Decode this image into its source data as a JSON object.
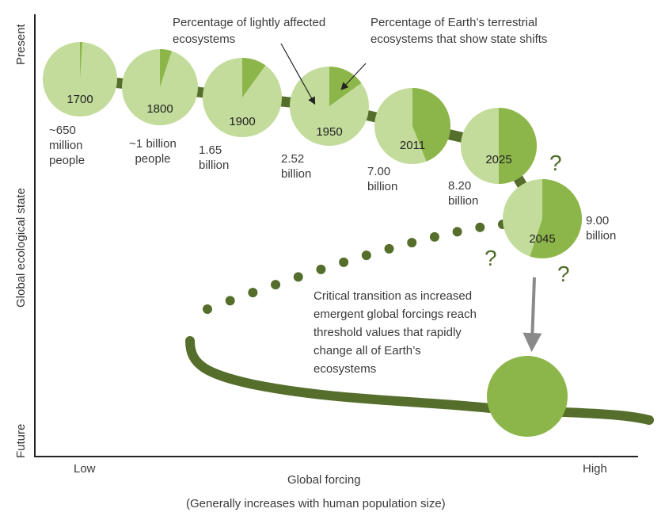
{
  "axes": {
    "y_label": "Global ecological state",
    "y_top": "Present",
    "y_bottom": "Future",
    "x_label": "Global forcing",
    "x_low": "Low",
    "x_high": "High",
    "x_note": "(Generally increases with human population size)"
  },
  "annotations": {
    "lightly_affected": "Percentage of lightly affected ecosystems",
    "state_shifts": "Percentage of Earth’s terrestrial ecosystems that show state shifts",
    "critical_transition": "Critical transition as increased emergent global forcings reach threshold values that rapidly change all of Earth’s ecosystems",
    "question_mark": "?"
  },
  "colors": {
    "light": "#c3dc9b",
    "dark": "#8db64a",
    "curve": "#556e2b",
    "arrow": "#8a8a8a"
  },
  "pies": [
    {
      "year": "1700",
      "population": "~650 million people",
      "shift_percent": 1
    },
    {
      "year": "1800",
      "population": "~1 billion people",
      "shift_percent": 5
    },
    {
      "year": "1900",
      "population": "1.65 billion",
      "shift_percent": 10
    },
    {
      "year": "1950",
      "population": "2.52 billion",
      "shift_percent": 15
    },
    {
      "year": "2011",
      "population": "7.00 billion",
      "shift_percent": 44
    },
    {
      "year": "2025",
      "population": "8.20 billion",
      "shift_percent": 50
    },
    {
      "year": "2045",
      "population": "9.00 billion",
      "shift_percent": 55
    }
  ]
}
